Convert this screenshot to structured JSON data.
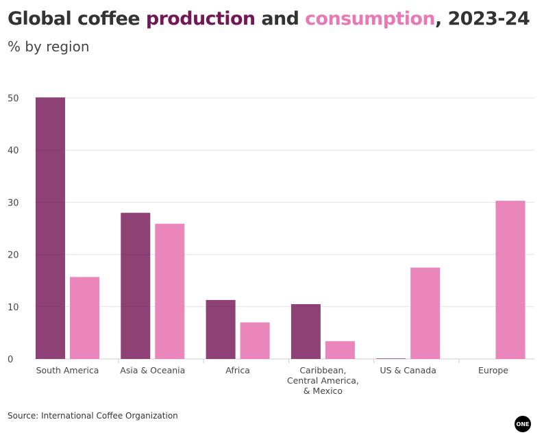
{
  "title": {
    "part1": "Global coffee ",
    "part2": "production",
    "part3": " and ",
    "part4": "consumption",
    "part5": ", 2023-24"
  },
  "subtitle": "% by region",
  "source": "Source: International Coffee Organization",
  "logo": "ONE",
  "colors": {
    "production": "#741755",
    "consumption": "#e879b5"
  },
  "chart_data": {
    "type": "bar",
    "title": "Global coffee production and consumption, 2023-24",
    "subtitle": "% by region",
    "categories": [
      [
        "South America"
      ],
      [
        "Asia & Oceania"
      ],
      [
        "Africa"
      ],
      [
        "Caribbean,",
        "Central America,",
        "& Mexico"
      ],
      [
        "US & Canada"
      ],
      [
        "Europe"
      ]
    ],
    "series": [
      {
        "name": "production",
        "values": [
          50.1,
          28.0,
          11.3,
          10.5,
          0.1,
          0
        ]
      },
      {
        "name": "consumption",
        "values": [
          15.7,
          25.9,
          7.0,
          3.4,
          17.5,
          30.3
        ]
      }
    ],
    "yticks": [
      0,
      10,
      20,
      30,
      40,
      50
    ],
    "ylim": [
      0,
      50
    ],
    "grid": true
  }
}
